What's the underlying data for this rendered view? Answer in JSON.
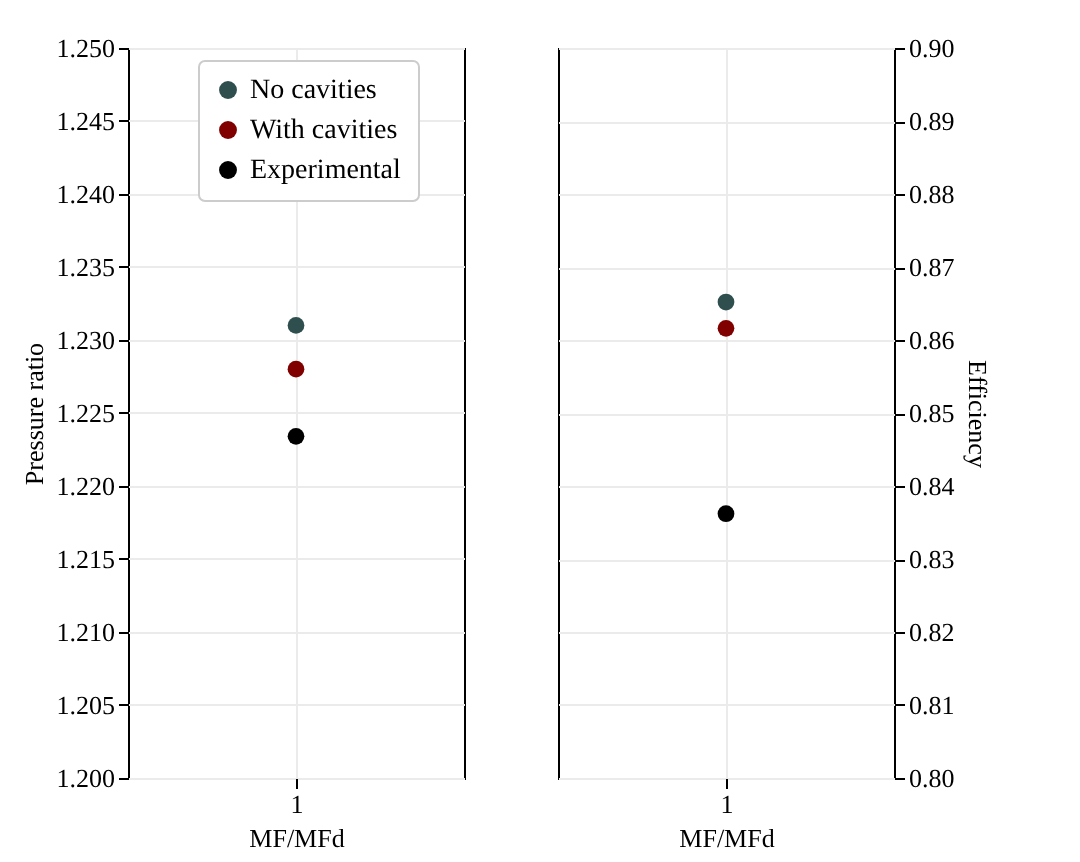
{
  "chart_data": [
    {
      "type": "scatter",
      "categories": [
        "1"
      ],
      "xlabel": "MF/MFd",
      "ylabel": "Pressure ratio",
      "ylim": [
        1.2,
        1.25
      ],
      "yticks": [
        {
          "value": 1.2,
          "label": "1.200"
        },
        {
          "value": 1.205,
          "label": "1.205"
        },
        {
          "value": 1.21,
          "label": "1.210"
        },
        {
          "value": 1.215,
          "label": "1.215"
        },
        {
          "value": 1.22,
          "label": "1.220"
        },
        {
          "value": 1.225,
          "label": "1.225"
        },
        {
          "value": 1.23,
          "label": "1.230"
        },
        {
          "value": 1.235,
          "label": "1.235"
        },
        {
          "value": 1.24,
          "label": "1.240"
        },
        {
          "value": 1.245,
          "label": "1.245"
        },
        {
          "value": 1.25,
          "label": "1.250"
        }
      ],
      "grid": true,
      "legend": "top",
      "marker": "circle",
      "series": [
        {
          "name": "No cavities",
          "color": "#2f4f4f",
          "values": [
            1.231
          ]
        },
        {
          "name": "With cavities",
          "color": "#800000",
          "values": [
            1.228
          ]
        },
        {
          "name": "Experimental",
          "color": "#000000",
          "values": [
            1.2234
          ]
        }
      ]
    },
    {
      "type": "scatter",
      "categories": [
        "1"
      ],
      "xlabel": "MF/MFd",
      "y2label": "Efficiency",
      "y2lim": [
        0.8,
        0.9
      ],
      "y2ticks": [
        {
          "value": 0.8,
          "label": "0.80"
        },
        {
          "value": 0.81,
          "label": "0.81"
        },
        {
          "value": 0.82,
          "label": "0.82"
        },
        {
          "value": 0.83,
          "label": "0.83"
        },
        {
          "value": 0.84,
          "label": "0.84"
        },
        {
          "value": 0.85,
          "label": "0.85"
        },
        {
          "value": 0.86,
          "label": "0.86"
        },
        {
          "value": 0.87,
          "label": "0.87"
        },
        {
          "value": 0.88,
          "label": "0.88"
        },
        {
          "value": 0.89,
          "label": "0.89"
        },
        {
          "value": 0.9,
          "label": "0.90"
        }
      ],
      "grid": true,
      "marker": "circle",
      "series": [
        {
          "color": "#2f4f4f",
          "values": [
            0.8652
          ],
          "axis": "y2"
        },
        {
          "color": "#800000",
          "values": [
            0.8616
          ],
          "axis": "y2"
        },
        {
          "color": "#000000",
          "values": [
            0.8362
          ],
          "axis": "y2"
        }
      ]
    }
  ]
}
